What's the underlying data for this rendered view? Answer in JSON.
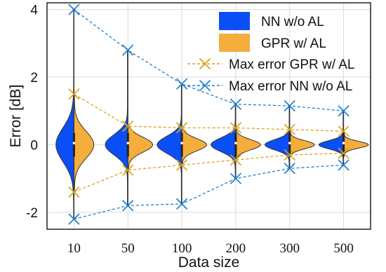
{
  "chart_data": {
    "type": "violin",
    "xlabel": "Data size",
    "ylabel": "Error [dB]",
    "categories": [
      "10",
      "50",
      "100",
      "200",
      "300",
      "500"
    ],
    "ylim": [
      -2.5,
      4.2
    ],
    "yticks": [
      4,
      2,
      0,
      -2
    ],
    "grid": true,
    "legend_position": "top-right",
    "colors": {
      "nn": "#0a4ff5",
      "gpr": "#f5ad3c",
      "gpr_line": "#d9a21a",
      "nn_line": "#1f7fd0"
    },
    "legend": [
      {
        "label": "NN w/o AL",
        "kind": "patch",
        "color": "#0a4ff5"
      },
      {
        "label": "GPR w/ AL",
        "kind": "patch",
        "color": "#f5ad3c"
      },
      {
        "label": "Max error GPR w/ AL",
        "kind": "line",
        "color": "#d9a21a"
      },
      {
        "label": "Max error NN w/o AL",
        "kind": "line",
        "color": "#1f7fd0"
      }
    ],
    "violins": {
      "nn": [
        {
          "min": -2.2,
          "max": 4.0,
          "spread": 0.5
        },
        {
          "min": -1.8,
          "max": 2.8,
          "spread": 0.3
        },
        {
          "min": -1.75,
          "max": 1.8,
          "spread": 0.25
        },
        {
          "min": -1.0,
          "max": 1.2,
          "spread": 0.2
        },
        {
          "min": -0.7,
          "max": 1.15,
          "spread": 0.15
        },
        {
          "min": -0.6,
          "max": 1.0,
          "spread": 0.12
        }
      ],
      "gpr": [
        {
          "min": -1.4,
          "max": 1.5,
          "spread": 0.4
        },
        {
          "min": -0.75,
          "max": 0.55,
          "spread": 0.22
        },
        {
          "min": -0.6,
          "max": 0.5,
          "spread": 0.18
        },
        {
          "min": -0.45,
          "max": 0.5,
          "spread": 0.15
        },
        {
          "min": -0.3,
          "max": 0.45,
          "spread": 0.12
        },
        {
          "min": -0.25,
          "max": 0.4,
          "spread": 0.1
        }
      ]
    },
    "series": [
      {
        "name": "Max error GPR w/ AL",
        "upper": [
          1.5,
          0.55,
          0.5,
          0.5,
          0.45,
          0.4
        ],
        "lower": [
          -1.4,
          -0.75,
          -0.6,
          -0.45,
          -0.3,
          -0.25
        ]
      },
      {
        "name": "Max error NN w/o AL",
        "upper": [
          4.0,
          2.8,
          1.8,
          1.2,
          1.15,
          1.0
        ],
        "lower": [
          -2.2,
          -1.8,
          -1.75,
          -1.0,
          -0.7,
          -0.6
        ]
      }
    ]
  }
}
